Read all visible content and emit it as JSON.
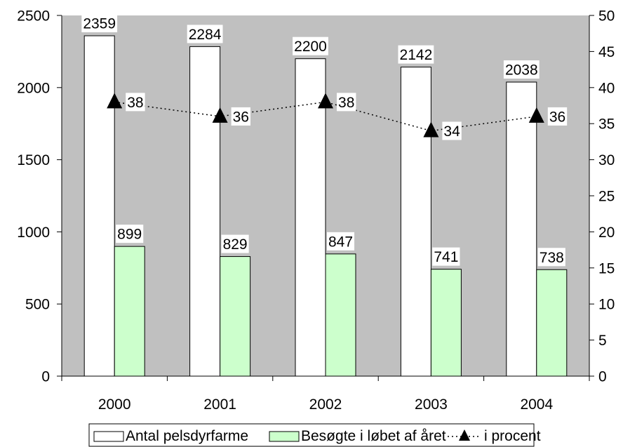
{
  "chart_data": {
    "type": "bar",
    "categories": [
      "2000",
      "2001",
      "2002",
      "2003",
      "2004"
    ],
    "series": [
      {
        "name": "Antal pelsdyrfarme",
        "type": "bar",
        "axis": "left",
        "color": "#ffffff",
        "values": [
          2359,
          2284,
          2200,
          2142,
          2038
        ]
      },
      {
        "name": "Besøgte i løbet af året",
        "type": "bar",
        "axis": "left",
        "color": "#ccffcc",
        "values": [
          899,
          829,
          847,
          741,
          738
        ]
      },
      {
        "name": "i procent",
        "type": "line",
        "axis": "right",
        "color": "#000000",
        "style": "dotted",
        "marker": "triangle",
        "values": [
          38,
          36,
          38,
          34,
          36
        ]
      }
    ],
    "y_left": {
      "min": 0,
      "max": 2500,
      "ticks": [
        "0",
        "500",
        "1000",
        "1500",
        "2000",
        "2500"
      ]
    },
    "y_right": {
      "min": 0,
      "max": 50,
      "ticks": [
        "0",
        "5",
        "10",
        "15",
        "20",
        "25",
        "30",
        "35",
        "40",
        "45",
        "50"
      ]
    },
    "plot_background": "#c0c0c0",
    "grid": false,
    "legend_position": "bottom"
  }
}
